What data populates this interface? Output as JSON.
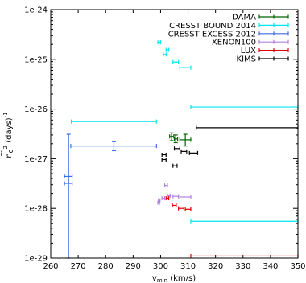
{
  "chart_data": {
    "type": "scatter",
    "title": "",
    "xlabel_base": "v",
    "xlabel_sub": "min",
    "xlabel_unit": " (km/s)",
    "ylabel_base": "η",
    "ylabel_tilde": "~",
    "ylabel_mid": "c",
    "ylabel_sup": "2",
    "ylabel_unit": " (days)",
    "ylabel_unit_sup": "-1",
    "xlim": [
      260,
      350
    ],
    "ylim": [
      1e-29,
      1e-24
    ],
    "y_scale": "log",
    "x_ticks": [
      260,
      270,
      280,
      290,
      300,
      310,
      320,
      330,
      340,
      350
    ],
    "x_tick_labels": [
      "260",
      "270",
      "280",
      "290",
      "300",
      "310",
      "320",
      "330",
      "340",
      "350"
    ],
    "y_ticks": [
      1e-29,
      1e-28,
      1e-27,
      1e-26,
      1e-25,
      1e-24
    ],
    "y_tick_labels": [
      "1e-29",
      "1e-28",
      "1e-27",
      "1e-26",
      "1e-25",
      "1e-24"
    ],
    "grid": false,
    "legend_position": "top-right",
    "series": [
      {
        "name": "DAMA",
        "color": "#006400",
        "points": [
          {
            "x": 304,
            "xlo": 303.3,
            "xhi": 304.8,
            "y": 2.8e-27,
            "ylo": 2.3e-27,
            "yhi": 3.3e-27
          },
          {
            "x": 305.5,
            "xlo": 305,
            "xhi": 306.2,
            "y": 2.5e-27,
            "ylo": 2.1e-27,
            "yhi": 3e-27
          },
          {
            "x": 309,
            "xlo": 307,
            "xhi": 311,
            "y": 2.4e-27,
            "ylo": 1.8e-27,
            "yhi": 3.1e-27
          }
        ]
      },
      {
        "name": "CRESST BOUND 2014",
        "color": "#00e5ee",
        "points": [
          {
            "x": 299.5,
            "xlo": 299,
            "xhi": 300,
            "y": 2.2e-25
          },
          {
            "x": 302.5,
            "xlo": 302,
            "xhi": 303,
            "y": 1.55e-25
          },
          {
            "x": 301.5,
            "xlo": 301,
            "xhi": 302,
            "y": 1.25e-25
          },
          {
            "x": 305.5,
            "xlo": 304.5,
            "xhi": 306.5,
            "y": 8.8e-26
          },
          {
            "x": 309,
            "xlo": 307,
            "xhi": 311,
            "y": 6.8e-26
          },
          {
            "x": 283,
            "xlo": 267.5,
            "xhi": 298.5,
            "y": 5.6e-27
          },
          {
            "x": 330.5,
            "xlo": 311,
            "xhi": 350,
            "y": 1.1e-26
          },
          {
            "x": 330.5,
            "xlo": 311,
            "xhi": 350,
            "y": 5.5e-29
          }
        ]
      },
      {
        "name": "CRESST EXCESS 2012",
        "color": "#4169e1",
        "points": [
          {
            "x": 266.3,
            "xlo": 265,
            "xhi": 267.8,
            "y": 4.4e-28
          },
          {
            "x": 266.3,
            "xlo": 265,
            "xhi": 267.8,
            "y": 3.2e-28
          },
          {
            "x": 266.5,
            "xlo": 266.5,
            "xhi": 266.5,
            "y": 1.6e-27,
            "ylo": 1e-29,
            "yhi": 3.1e-27
          },
          {
            "x": 283,
            "xlo": 267.3,
            "xhi": 298.5,
            "y": 1.8e-27,
            "ylo": 1.45e-27,
            "yhi": 2.2e-27
          }
        ]
      },
      {
        "name": "XENON100",
        "color": "#b080e0",
        "points": [
          {
            "x": 299.3,
            "xlo": 299,
            "xhi": 299.6,
            "y": 1.3e-28
          },
          {
            "x": 299.5,
            "xlo": 299.2,
            "xhi": 299.8,
            "y": 1.45e-28
          },
          {
            "x": 301,
            "xlo": 300.5,
            "xhi": 301.5,
            "y": 1.6e-28
          },
          {
            "x": 303,
            "xlo": 302.5,
            "xhi": 303.5,
            "y": 1.8e-28
          },
          {
            "x": 302,
            "xlo": 301.5,
            "xhi": 302.5,
            "y": 2.9e-28
          },
          {
            "x": 305.5,
            "xlo": 304.5,
            "xhi": 306.5,
            "y": 1.75e-28
          },
          {
            "x": 309,
            "xlo": 307,
            "xhi": 311,
            "y": 1.7e-28
          }
        ]
      },
      {
        "name": "LUX",
        "color": "#e00000",
        "points": [
          {
            "x": 302.5,
            "xlo": 302,
            "xhi": 303,
            "y": 1.6e-28
          },
          {
            "x": 305,
            "xlo": 304.3,
            "xhi": 305.7,
            "y": 1.15e-28
          },
          {
            "x": 307.5,
            "xlo": 306.5,
            "xhi": 308.5,
            "y": 1e-28
          },
          {
            "x": 310,
            "xlo": 309,
            "xhi": 311,
            "y": 9.6e-29
          },
          {
            "x": 330.5,
            "xlo": 311,
            "xhi": 350,
            "y": 1.1e-29
          }
        ]
      },
      {
        "name": "KIMS",
        "color": "#000000",
        "points": [
          {
            "x": 301.3,
            "xlo": 300.5,
            "xhi": 302,
            "y": 1.2e-27
          },
          {
            "x": 301.3,
            "xlo": 300.5,
            "xhi": 302,
            "y": 9.6e-28
          },
          {
            "x": 305.3,
            "xlo": 304.5,
            "xhi": 306,
            "y": 7.2e-28
          },
          {
            "x": 306,
            "xlo": 305,
            "xhi": 307,
            "y": 1.6e-27
          },
          {
            "x": 308.5,
            "xlo": 307.5,
            "xhi": 309.5,
            "y": 1.4e-27
          },
          {
            "x": 312,
            "xlo": 310.5,
            "xhi": 313.5,
            "y": 1.3e-27
          },
          {
            "x": 331.5,
            "xlo": 313,
            "xhi": 350,
            "y": 4.2e-27
          }
        ]
      }
    ]
  }
}
